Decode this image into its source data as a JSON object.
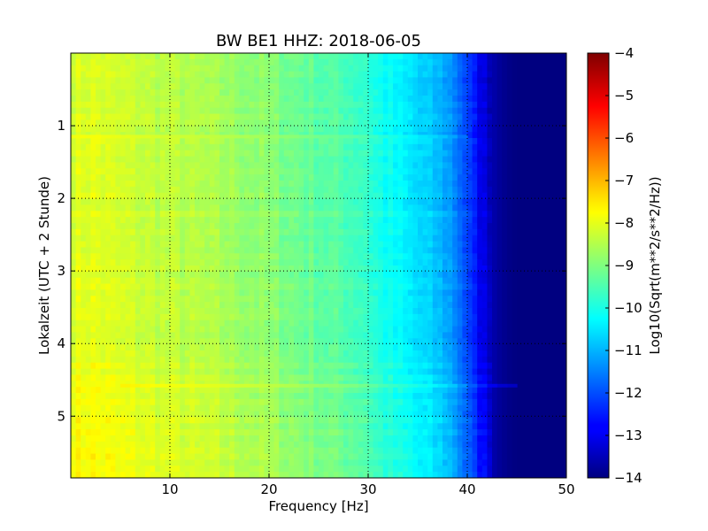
{
  "chart_data": {
    "type": "heatmap",
    "title": "BW BE1 HHZ: 2018-06-05",
    "xlabel": "Frequency [Hz]",
    "ylabel": "Lokalzeit (UTC + 2 Stunde)",
    "xlim": [
      0,
      50
    ],
    "ylim": [
      5.85,
      0
    ],
    "x_ticks": [
      10,
      20,
      30,
      40,
      50
    ],
    "y_ticks": [
      1,
      2,
      3,
      4,
      5
    ],
    "grid": true,
    "colormap": "jet",
    "colorbar": {
      "label": "Log10(Sqrt(m**2/s**2/Hz))",
      "range": [
        -14,
        -4
      ],
      "ticks": [
        -4,
        -5,
        -6,
        -7,
        -8,
        -9,
        -10,
        -11,
        -12,
        -13,
        -14
      ]
    },
    "frequency_profile": {
      "frequency_hz": [
        0,
        2,
        5,
        10,
        15,
        20,
        25,
        28,
        30,
        31,
        33,
        35,
        37,
        38,
        39,
        40,
        41,
        42,
        43,
        44,
        45,
        50
      ],
      "log10_amplitude": [
        -8.2,
        -8.1,
        -8.3,
        -8.5,
        -8.7,
        -9.0,
        -9.4,
        -9.6,
        -9.8,
        -10.1,
        -10.4,
        -10.7,
        -11.0,
        -11.2,
        -11.6,
        -12.2,
        -12.8,
        -13.3,
        -13.7,
        -13.9,
        -14,
        -14
      ]
    },
    "time_profile": {
      "hour": [
        0,
        1,
        2,
        3,
        4,
        4.6,
        5,
        5.85
      ],
      "offset": [
        0,
        0.05,
        0.1,
        0.1,
        0.15,
        0.3,
        0.35,
        0.4
      ]
    },
    "features": [
      {
        "hour": 4.58,
        "from_hz": 5,
        "to_hz": 45,
        "offset": 0.7
      },
      {
        "hour": 1.15,
        "from_hz": 0,
        "to_hz": 40,
        "offset": 0.35
      }
    ]
  }
}
